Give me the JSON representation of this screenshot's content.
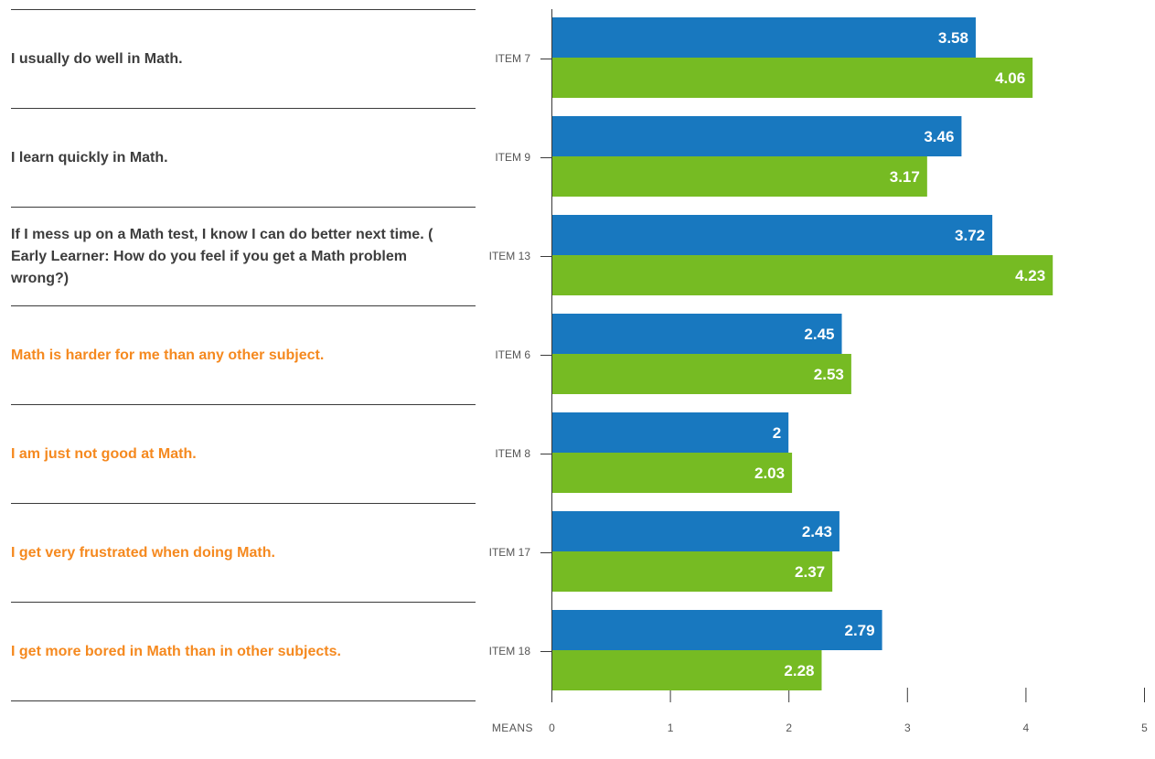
{
  "chart_data": {
    "type": "bar",
    "orientation": "horizontal",
    "categories": [
      "ITEM 7",
      "ITEM 9",
      "ITEM 13",
      "ITEM 6",
      "ITEM 8",
      "ITEM 17",
      "ITEM 18"
    ],
    "statements": [
      {
        "text": "I usually do well in Math.",
        "tone": "positive"
      },
      {
        "text": "I learn quickly in Math.",
        "tone": "positive"
      },
      {
        "text": "If I mess up on a Math test, I know I can do better next time. ( Early Learner: How do you feel if you get a Math problem wrong?)",
        "tone": "positive"
      },
      {
        "text": "Math is harder for me than any other subject.",
        "tone": "negative"
      },
      {
        "text": "I am just not good at Math.",
        "tone": "negative"
      },
      {
        "text": "I get very frustrated when doing Math.",
        "tone": "negative"
      },
      {
        "text": "I get more bored in Math than in other subjects.",
        "tone": "negative"
      }
    ],
    "series": [
      {
        "values": [
          3.58,
          3.46,
          3.72,
          2.45,
          2,
          2.43,
          2.79
        ],
        "labels": [
          "3.58",
          "3.46",
          "3.72",
          "2.45",
          "2",
          "2.43",
          "2.79"
        ],
        "color": "#1878bf"
      },
      {
        "values": [
          4.06,
          3.17,
          4.23,
          2.53,
          2.03,
          2.37,
          2.28
        ],
        "labels": [
          "4.06",
          "3.17",
          "4.23",
          "2.53",
          "2.03",
          "2.37",
          "2.28"
        ],
        "color": "#76bb23"
      }
    ],
    "xlim": [
      0,
      5
    ],
    "xticks": [
      0,
      1,
      2,
      3,
      4,
      5
    ],
    "xticklabels": [
      "0",
      "1",
      "2",
      "3",
      "4",
      "5"
    ],
    "xlabel": "MEANS",
    "grid": false,
    "colors": {
      "positive_text": "#3d3d3d",
      "negative_text": "#f5891f",
      "axis": "#3a3a3a",
      "tick_text": "#555555",
      "value_text": "#ffffff"
    }
  }
}
